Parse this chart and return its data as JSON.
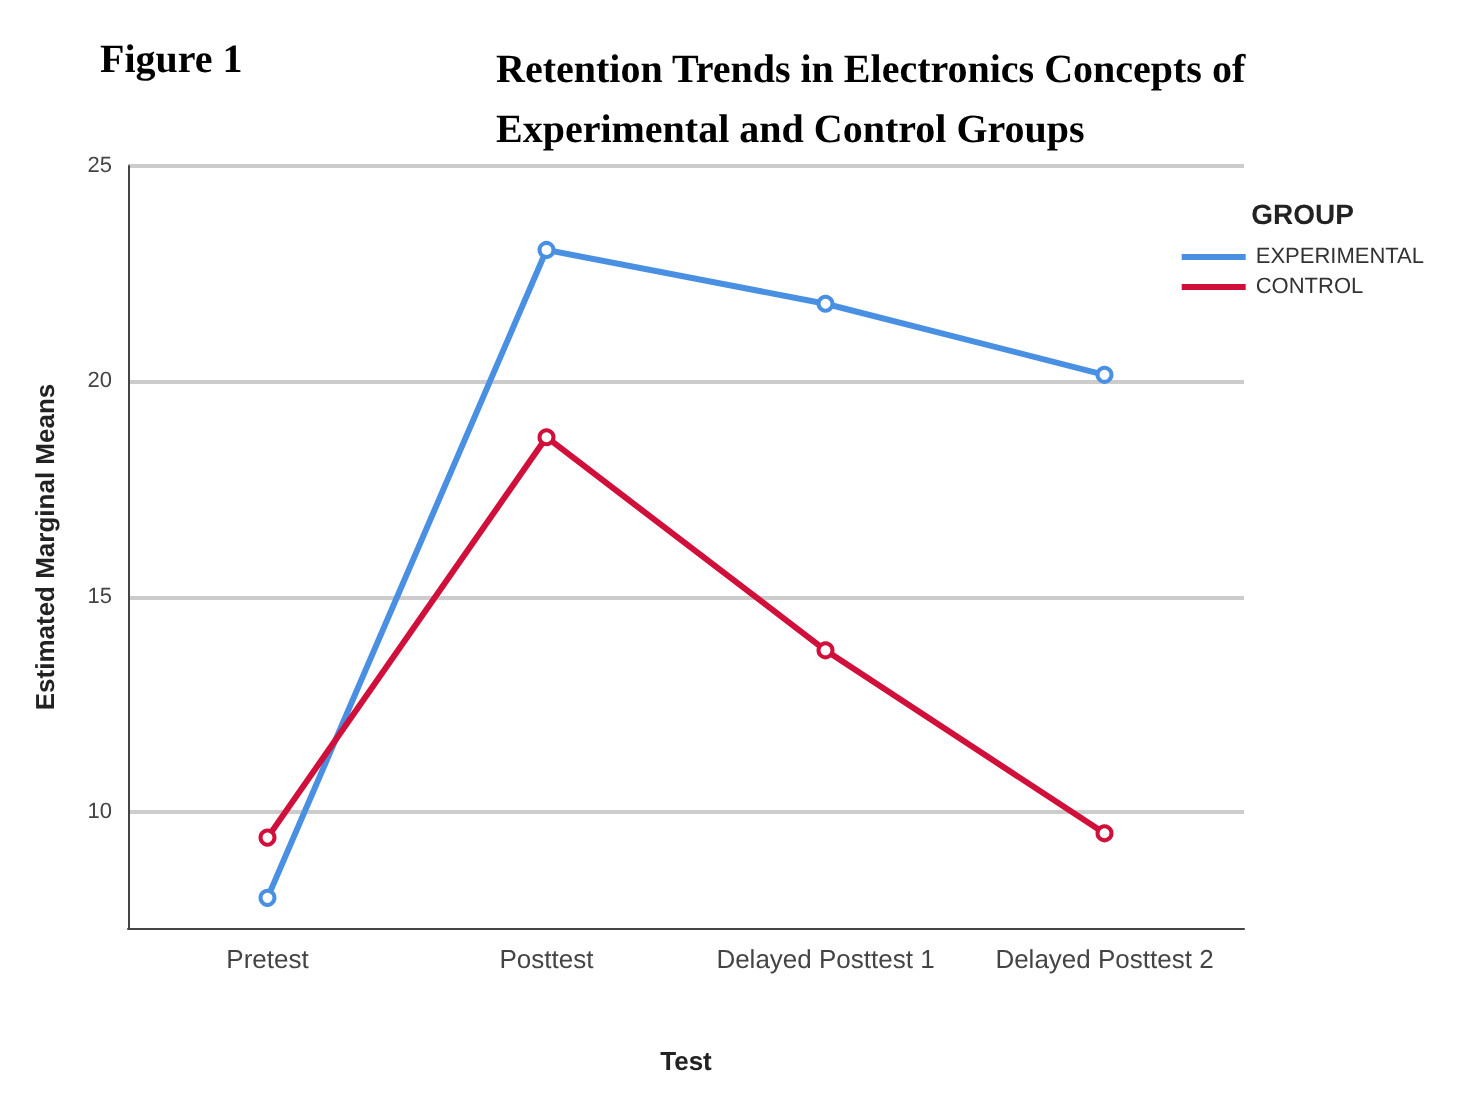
{
  "chart_data": {
    "type": "line",
    "title": "Retention Trends in Electronics Concepts of Experimental and Control Groups",
    "annotations": [
      "Figure 1"
    ],
    "xlabel": "Test",
    "ylabel": "Estimated Marginal Means",
    "legend_title": "GROUP",
    "categories": [
      "Pretest",
      "Posttest",
      "Delayed Posttest 1",
      "Delayed Posttest 2"
    ],
    "series": [
      {
        "name": "EXPERIMENTAL",
        "color": "#4a90e2",
        "values": [
          8.0,
          23.05,
          21.8,
          20.15
        ]
      },
      {
        "name": "CONTROL",
        "color": "#d0103a",
        "values": [
          9.4,
          18.7,
          13.75,
          9.5
        ]
      }
    ],
    "ylim": [
      7.3,
      25
    ],
    "yticks": [
      10,
      15,
      20,
      25
    ],
    "grid": "y",
    "legend": "top right",
    "marker": "circle",
    "line_style": "solid"
  }
}
